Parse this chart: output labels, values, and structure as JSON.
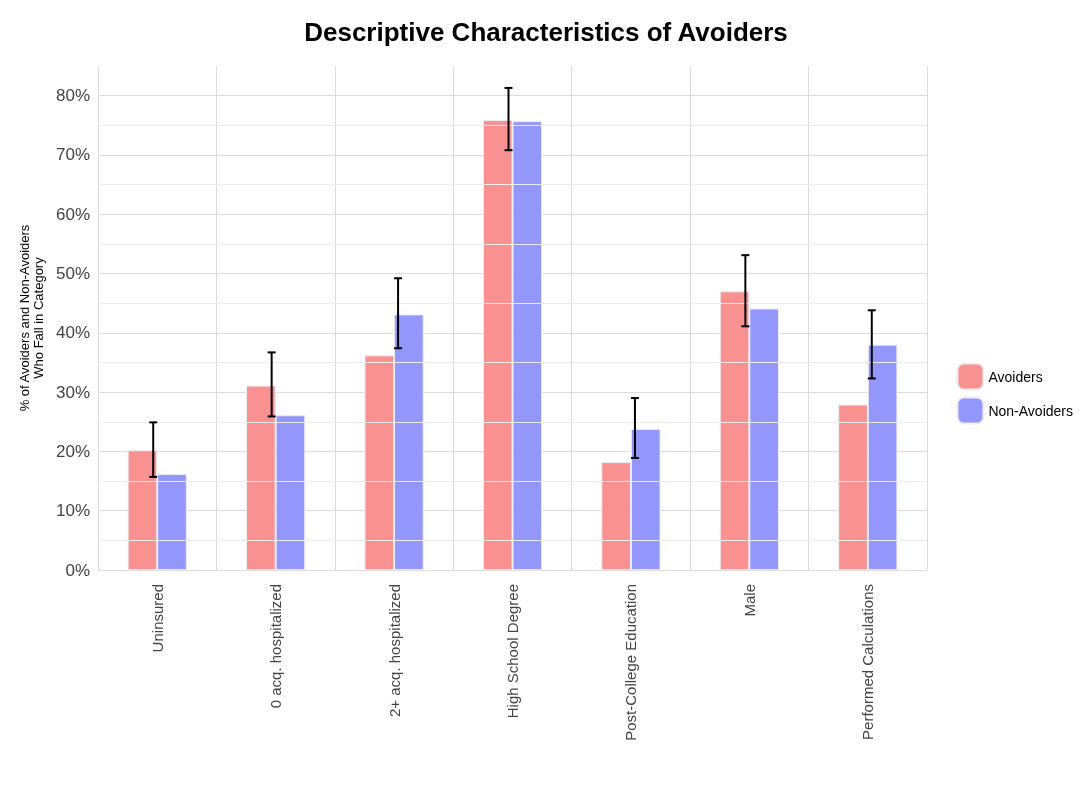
{
  "chart_data": {
    "type": "bar",
    "title": "Descriptive Characteristics of Avoiders",
    "ylabel": "% of Avoiders and Non-Avoiders\nWho Fall in Category",
    "categories": [
      "Uninsured",
      "0 acq. hospitalized",
      "2+ acq. hospitalized",
      "High School Degree",
      "Post-College Education",
      "Male",
      "Performed Calculations"
    ],
    "series": [
      {
        "name": "Avoiders",
        "color": "#fa9191",
        "values": [
          20.2,
          31.1,
          36.2,
          75.9,
          18.2,
          47.0,
          27.9
        ],
        "errors": [
          [
            15.7,
            24.9
          ],
          [
            25.9,
            36.7
          ],
          null,
          [
            70.8,
            81.3
          ],
          null,
          [
            41.1,
            53.1
          ],
          null
        ]
      },
      {
        "name": "Non-Avoiders",
        "color": "#9396fb",
        "values": [
          16.2,
          26.1,
          43.1,
          75.7,
          23.8,
          44.1,
          38.0
        ],
        "errors": [
          null,
          null,
          [
            37.4,
            49.2
          ],
          null,
          [
            18.9,
            29.0
          ],
          null,
          [
            32.3,
            43.8
          ]
        ]
      }
    ],
    "ylim": [
      0,
      85
    ],
    "yticks": [
      {
        "value": 0,
        "label": "0%"
      },
      {
        "value": 10,
        "label": "10%"
      },
      {
        "value": 20,
        "label": "20%"
      },
      {
        "value": 30,
        "label": "30%"
      },
      {
        "value": 40,
        "label": "40%"
      },
      {
        "value": 50,
        "label": "50%"
      },
      {
        "value": 60,
        "label": "60%"
      },
      {
        "value": 70,
        "label": "70%"
      },
      {
        "value": 80,
        "label": "80%"
      }
    ],
    "grid": true,
    "legend": "right"
  }
}
